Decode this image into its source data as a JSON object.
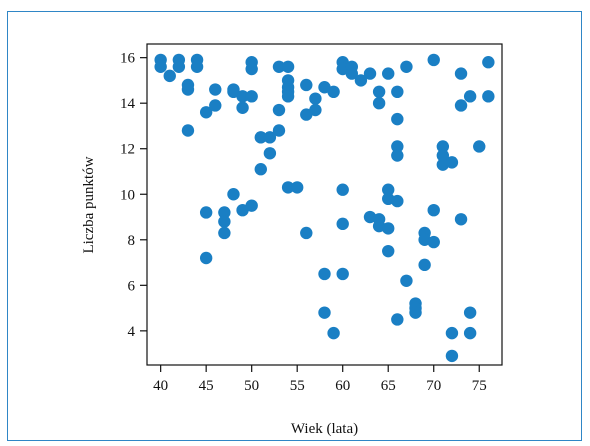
{
  "chart_data": {
    "type": "scatter",
    "xlabel": "Wiek (lata)",
    "ylabel": "Liczba punktów",
    "xlim": [
      38.5,
      77.5
    ],
    "ylim": [
      2.5,
      16.6
    ],
    "xticks": [
      40,
      45,
      50,
      55,
      60,
      65,
      70,
      75
    ],
    "yticks": [
      4,
      6,
      8,
      10,
      12,
      14,
      16
    ],
    "marker_color": "#1a7fc4",
    "grid": false,
    "points": [
      {
        "x": 40,
        "y": 15.9
      },
      {
        "x": 40,
        "y": 15.6
      },
      {
        "x": 41,
        "y": 15.2
      },
      {
        "x": 42,
        "y": 15.9
      },
      {
        "x": 42,
        "y": 15.6
      },
      {
        "x": 43,
        "y": 14.8
      },
      {
        "x": 43,
        "y": 14.6
      },
      {
        "x": 44,
        "y": 15.9
      },
      {
        "x": 44,
        "y": 15.6
      },
      {
        "x": 43,
        "y": 12.8
      },
      {
        "x": 45,
        "y": 13.6
      },
      {
        "x": 46,
        "y": 14.6
      },
      {
        "x": 46,
        "y": 13.9
      },
      {
        "x": 48,
        "y": 14.6
      },
      {
        "x": 48,
        "y": 14.5
      },
      {
        "x": 49,
        "y": 14.3
      },
      {
        "x": 49,
        "y": 13.8
      },
      {
        "x": 50,
        "y": 15.8
      },
      {
        "x": 50,
        "y": 15.5
      },
      {
        "x": 50,
        "y": 14.3
      },
      {
        "x": 51,
        "y": 12.5
      },
      {
        "x": 52,
        "y": 12.5
      },
      {
        "x": 52,
        "y": 11.8
      },
      {
        "x": 51,
        "y": 11.1
      },
      {
        "x": 53,
        "y": 15.6
      },
      {
        "x": 53,
        "y": 13.7
      },
      {
        "x": 53,
        "y": 12.8
      },
      {
        "x": 54,
        "y": 15.6
      },
      {
        "x": 54,
        "y": 15.0
      },
      {
        "x": 54,
        "y": 14.7
      },
      {
        "x": 54,
        "y": 14.5
      },
      {
        "x": 54,
        "y": 14.3
      },
      {
        "x": 56,
        "y": 14.8
      },
      {
        "x": 56,
        "y": 13.5
      },
      {
        "x": 57,
        "y": 14.2
      },
      {
        "x": 57,
        "y": 13.7
      },
      {
        "x": 58,
        "y": 14.7
      },
      {
        "x": 59,
        "y": 14.5
      },
      {
        "x": 60,
        "y": 15.8
      },
      {
        "x": 60,
        "y": 15.5
      },
      {
        "x": 61,
        "y": 15.6
      },
      {
        "x": 61,
        "y": 15.3
      },
      {
        "x": 62,
        "y": 15.0
      },
      {
        "x": 63,
        "y": 15.3
      },
      {
        "x": 64,
        "y": 14.5
      },
      {
        "x": 64,
        "y": 14.0
      },
      {
        "x": 65,
        "y": 15.3
      },
      {
        "x": 66,
        "y": 14.5
      },
      {
        "x": 66,
        "y": 13.3
      },
      {
        "x": 67,
        "y": 15.6
      },
      {
        "x": 66,
        "y": 12.1
      },
      {
        "x": 66,
        "y": 11.7
      },
      {
        "x": 70,
        "y": 15.9
      },
      {
        "x": 71,
        "y": 12.1
      },
      {
        "x": 71,
        "y": 11.7
      },
      {
        "x": 71,
        "y": 11.3
      },
      {
        "x": 72,
        "y": 11.4
      },
      {
        "x": 73,
        "y": 15.3
      },
      {
        "x": 73,
        "y": 13.9
      },
      {
        "x": 74,
        "y": 14.3
      },
      {
        "x": 75,
        "y": 12.1
      },
      {
        "x": 76,
        "y": 15.8
      },
      {
        "x": 76,
        "y": 14.3
      },
      {
        "x": 45,
        "y": 9.2
      },
      {
        "x": 45,
        "y": 7.2
      },
      {
        "x": 47,
        "y": 9.2
      },
      {
        "x": 47,
        "y": 8.8
      },
      {
        "x": 47,
        "y": 8.3
      },
      {
        "x": 48,
        "y": 10.0
      },
      {
        "x": 49,
        "y": 9.3
      },
      {
        "x": 50,
        "y": 9.5
      },
      {
        "x": 54,
        "y": 10.3
      },
      {
        "x": 55,
        "y": 10.3
      },
      {
        "x": 56,
        "y": 8.3
      },
      {
        "x": 58,
        "y": 6.5
      },
      {
        "x": 58,
        "y": 4.8
      },
      {
        "x": 59,
        "y": 3.9
      },
      {
        "x": 60,
        "y": 10.2
      },
      {
        "x": 60,
        "y": 8.7
      },
      {
        "x": 60,
        "y": 6.5
      },
      {
        "x": 63,
        "y": 9.0
      },
      {
        "x": 64,
        "y": 8.9
      },
      {
        "x": 64,
        "y": 8.6
      },
      {
        "x": 65,
        "y": 10.2
      },
      {
        "x": 65,
        "y": 9.8
      },
      {
        "x": 65,
        "y": 8.5
      },
      {
        "x": 65,
        "y": 7.5
      },
      {
        "x": 66,
        "y": 9.7
      },
      {
        "x": 67,
        "y": 6.2
      },
      {
        "x": 66,
        "y": 4.5
      },
      {
        "x": 68,
        "y": 5.2
      },
      {
        "x": 68,
        "y": 5.0
      },
      {
        "x": 68,
        "y": 4.8
      },
      {
        "x": 69,
        "y": 8.3
      },
      {
        "x": 69,
        "y": 8.0
      },
      {
        "x": 69,
        "y": 6.9
      },
      {
        "x": 70,
        "y": 9.3
      },
      {
        "x": 70,
        "y": 7.9
      },
      {
        "x": 73,
        "y": 8.9
      },
      {
        "x": 72,
        "y": 3.9
      },
      {
        "x": 72,
        "y": 2.9
      },
      {
        "x": 74,
        "y": 4.8
      },
      {
        "x": 74,
        "y": 3.9
      }
    ]
  }
}
